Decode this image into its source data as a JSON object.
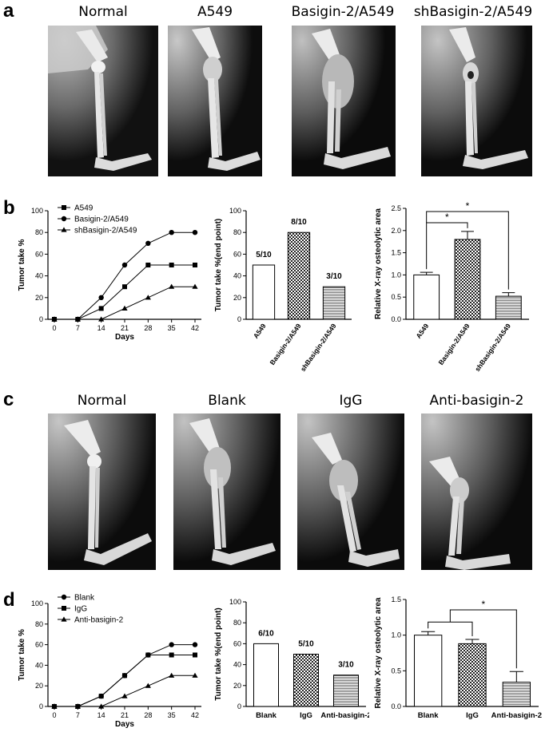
{
  "panels": {
    "a": "a",
    "b": "b",
    "c": "c",
    "d": "d"
  },
  "xray_a": {
    "titles": [
      "Normal",
      "A549",
      "Basigin-2/A549",
      "shBasigin-2/A549"
    ]
  },
  "xray_c": {
    "titles": [
      "Normal",
      "Blank",
      "IgG",
      "Anti-basigin-2"
    ]
  },
  "chart_data": [
    {
      "id": "b-line",
      "type": "line",
      "ylabel": "Tumor take %",
      "xlabel": "Days",
      "ylim": [
        0,
        100
      ],
      "yticks": [
        0,
        20,
        40,
        60,
        80,
        100
      ],
      "x": [
        0,
        7,
        14,
        21,
        28,
        35,
        42
      ],
      "series": [
        {
          "name": "A549",
          "marker": "square",
          "values": [
            0,
            0,
            10,
            30,
            50,
            50,
            50
          ]
        },
        {
          "name": "Basigin-2/A549",
          "marker": "circle",
          "values": [
            0,
            0,
            20,
            50,
            70,
            80,
            80
          ]
        },
        {
          "name": "shBasigin-2/A549",
          "marker": "triangle",
          "values": [
            0,
            0,
            0,
            10,
            20,
            30,
            30
          ]
        }
      ],
      "legend": "top-left"
    },
    {
      "id": "b-bar1",
      "type": "bar",
      "ylabel": "Tumor take %(end point)",
      "ylim": [
        0,
        100
      ],
      "yticks": [
        0,
        20,
        40,
        60,
        80,
        100
      ],
      "categories": [
        "A549",
        "Basigin-2/A549",
        "shBasigin-2/A549"
      ],
      "values": [
        50,
        80,
        30
      ],
      "labels": [
        "5/10",
        "8/10",
        "3/10"
      ],
      "fills": [
        "white",
        "checker",
        "hlines"
      ],
      "rotated_xticks": true
    },
    {
      "id": "b-bar2",
      "type": "bar",
      "ylabel": "Relative X-ray osteolytic area",
      "ylim": [
        0,
        2.5
      ],
      "yticks": [
        "0.0",
        "0.5",
        "1.0",
        "1.5",
        "2.0",
        "2.5"
      ],
      "categories": [
        "A549",
        "Basigin-2/A549",
        "shBasigin-2/A549"
      ],
      "values": [
        1.0,
        1.8,
        0.52
      ],
      "errors": [
        0.06,
        0.18,
        0.08
      ],
      "fills": [
        "white",
        "checker",
        "hlines"
      ],
      "rotated_xticks": true,
      "significance": [
        "*",
        "*"
      ]
    },
    {
      "id": "d-line",
      "type": "line",
      "ylabel": "Tumor take %",
      "xlabel": "Days",
      "ylim": [
        0,
        100
      ],
      "yticks": [
        0,
        20,
        40,
        60,
        80,
        100
      ],
      "x": [
        0,
        7,
        14,
        21,
        28,
        35,
        42
      ],
      "series": [
        {
          "name": "Blank",
          "marker": "circle",
          "values": [
            0,
            0,
            10,
            30,
            50,
            60,
            60
          ]
        },
        {
          "name": "IgG",
          "marker": "square",
          "values": [
            0,
            0,
            10,
            30,
            50,
            50,
            50
          ]
        },
        {
          "name": "Anti-basigin-2",
          "marker": "triangle",
          "values": [
            0,
            0,
            0,
            10,
            20,
            30,
            30
          ]
        }
      ],
      "legend": "top-left"
    },
    {
      "id": "d-bar1",
      "type": "bar",
      "ylabel": "Tumor take %(end point)",
      "ylim": [
        0,
        100
      ],
      "yticks": [
        0,
        20,
        40,
        60,
        80,
        100
      ],
      "categories": [
        "Blank",
        "IgG",
        "Anti-basigin-2"
      ],
      "values": [
        60,
        50,
        30
      ],
      "labels": [
        "6/10",
        "5/10",
        "3/10"
      ],
      "fills": [
        "white",
        "checker",
        "hlines"
      ],
      "rotated_xticks": false
    },
    {
      "id": "d-bar2",
      "type": "bar",
      "ylabel": "Relative X-ray osteolytic area",
      "ylim": [
        0,
        1.5
      ],
      "yticks": [
        "0.0",
        "0.5",
        "1.0",
        "1.5"
      ],
      "categories": [
        "Blank",
        "IgG",
        "Anti-basigin-2"
      ],
      "values": [
        1.0,
        0.88,
        0.34
      ],
      "errors": [
        0.05,
        0.06,
        0.15
      ],
      "fills": [
        "white",
        "checker",
        "hlines"
      ],
      "rotated_xticks": false,
      "significance": [
        "*"
      ]
    }
  ]
}
